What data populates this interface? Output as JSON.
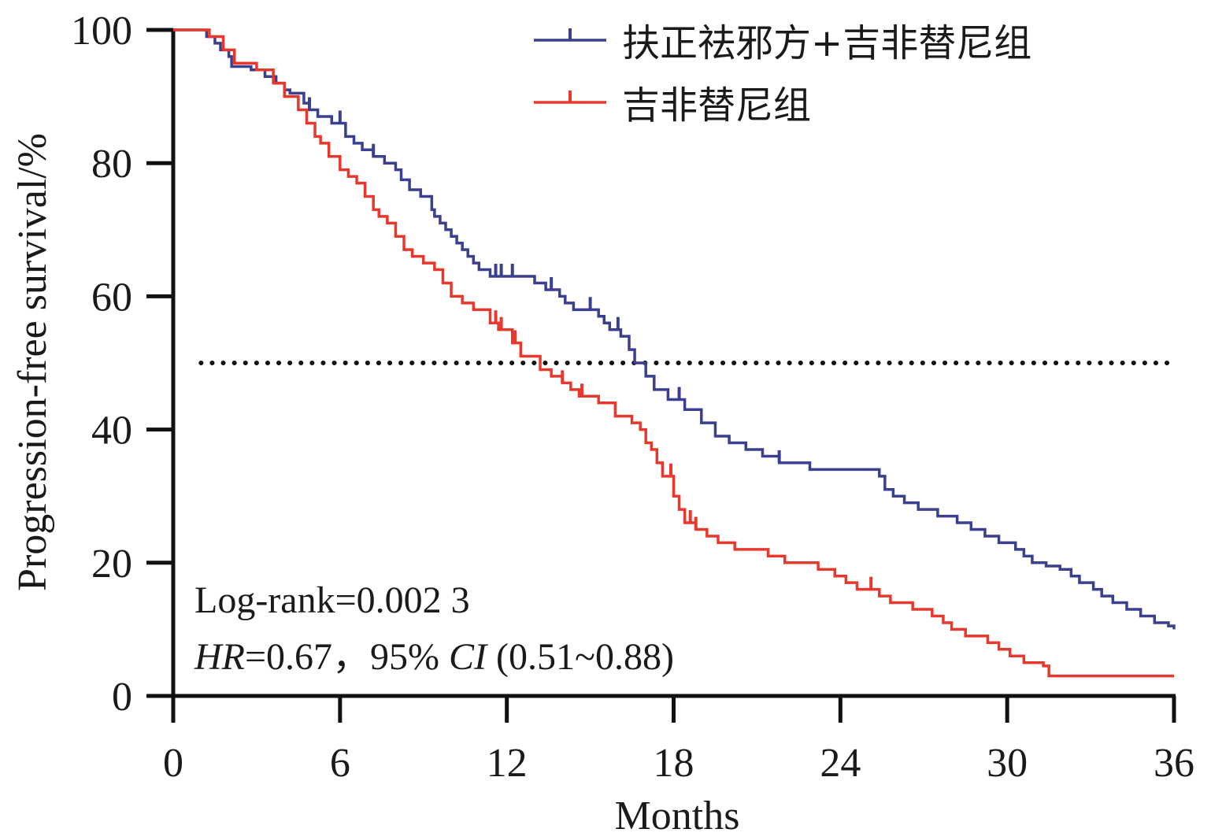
{
  "chart_data": {
    "type": "line",
    "subtype": "kaplan-meier step curve",
    "xlabel": "Months",
    "ylabel": "Progression-free survival/%",
    "xlim": [
      0,
      36
    ],
    "ylim": [
      0,
      100
    ],
    "x_ticks": [
      "0",
      "6",
      "12",
      "18",
      "24",
      "30",
      "36"
    ],
    "y_ticks": [
      "0",
      "20",
      "40",
      "60",
      "80",
      "100"
    ],
    "x_tick_values": [
      0,
      6,
      12,
      18,
      24,
      30,
      36
    ],
    "y_tick_values": [
      0,
      20,
      40,
      60,
      80,
      100
    ],
    "grid": false,
    "legend_position": "top-right",
    "reference_line": {
      "y": 50,
      "style": "dotted",
      "color": "#111111",
      "x_range": [
        1,
        36
      ]
    },
    "annotations": {
      "logrank": "Log-rank=0.002 3",
      "hr_label": "HR",
      "hr_text": "=0.67，95% ",
      "ci_label": "CI",
      "ci_text": " (0.51~0.88)"
    },
    "series": [
      {
        "name": "扶正祛邪方+吉非替尼组",
        "color": "#3a3f8f",
        "x": [
          0,
          1.2,
          1.5,
          1.7,
          2.0,
          2.1,
          2.8,
          3.3,
          3.7,
          4.0,
          4.2,
          4.7,
          4.9,
          5.2,
          5.7,
          6.2,
          6.5,
          6.8,
          7.2,
          7.6,
          8.0,
          8.2,
          8.5,
          8.9,
          9.3,
          9.4,
          9.6,
          9.8,
          10.0,
          10.2,
          10.4,
          10.6,
          10.8,
          11.0,
          11.4,
          13.0,
          13.4,
          13.9,
          14.1,
          14.4,
          15.3,
          15.5,
          15.7,
          16.1,
          16.4,
          16.6,
          17.0,
          17.3,
          17.8,
          18.4,
          19.0,
          19.5,
          20.0,
          20.6,
          21.2,
          21.8,
          22.9,
          25.4,
          25.6,
          25.9,
          26.3,
          26.8,
          27.5,
          28.2,
          28.7,
          29.2,
          29.7,
          30.3,
          30.6,
          30.9,
          31.4,
          31.9,
          32.3,
          32.6,
          33.1,
          33.4,
          33.8,
          34.3,
          34.8,
          35.3,
          35.8,
          36.0
        ],
        "y": [
          100,
          99,
          98,
          97,
          96,
          94.5,
          94,
          93,
          92,
          91,
          90.5,
          89,
          88,
          87,
          86,
          84,
          83,
          82,
          81,
          80,
          79,
          77.5,
          76,
          75,
          73,
          72,
          71,
          70,
          69,
          68,
          67,
          66,
          65,
          64,
          63,
          62,
          61,
          60,
          59,
          58,
          57,
          56,
          55,
          54,
          52,
          50,
          48,
          46,
          44.5,
          43,
          41,
          39,
          38,
          37,
          36,
          35,
          34,
          33,
          31,
          30,
          29,
          28,
          27,
          26,
          25,
          24,
          23,
          22,
          21,
          20,
          19.5,
          19,
          18,
          17,
          16,
          15,
          14,
          13,
          12,
          11,
          10.5,
          10
        ],
        "censor_times": [
          4.9,
          6.0,
          7.2,
          11.6,
          11.8,
          12.2,
          13.6,
          15.0,
          16.0,
          18.2,
          21.8
        ]
      },
      {
        "name": "吉非替尼组",
        "color": "#e8382e",
        "x": [
          0,
          1.3,
          1.8,
          2.2,
          3.0,
          3.6,
          4.0,
          4.5,
          4.8,
          5.1,
          5.3,
          5.6,
          6.0,
          6.3,
          6.6,
          6.9,
          7.2,
          7.4,
          7.7,
          8.0,
          8.3,
          8.6,
          9.0,
          9.4,
          9.7,
          10.0,
          10.4,
          10.8,
          11.4,
          11.7,
          12.2,
          12.5,
          13.2,
          13.6,
          14.0,
          14.3,
          14.6,
          15.3,
          15.9,
          16.5,
          16.8,
          17.0,
          17.2,
          17.4,
          17.6,
          18.0,
          18.2,
          18.4,
          18.8,
          19.2,
          19.6,
          20.2,
          21.4,
          22.0,
          23.2,
          23.8,
          24.2,
          24.6,
          25.4,
          25.8,
          26.6,
          27.3,
          27.7,
          28.0,
          28.5,
          29.3,
          29.7,
          30.1,
          30.6,
          31.3,
          31.5,
          36.0
        ],
        "y": [
          100,
          99,
          97,
          95,
          94,
          92,
          90,
          88,
          86,
          84,
          83,
          81,
          79,
          78,
          77,
          75,
          73,
          72,
          71,
          69,
          67,
          66,
          65,
          64,
          62,
          60,
          59,
          58,
          56,
          55,
          53,
          51,
          49,
          48,
          47,
          46,
          45,
          44,
          42,
          41,
          40,
          38,
          37,
          35,
          33,
          30,
          28,
          26,
          25,
          24,
          23,
          22,
          21,
          20,
          19,
          18,
          17,
          16,
          15,
          14,
          13,
          12,
          11,
          10,
          9,
          8,
          7,
          6,
          5,
          4.5,
          3,
          3
        ],
        "censor_times": [
          11.6,
          11.8,
          12.3,
          14.0,
          14.7,
          17.9,
          18.6,
          18.8,
          25.1
        ]
      }
    ]
  }
}
